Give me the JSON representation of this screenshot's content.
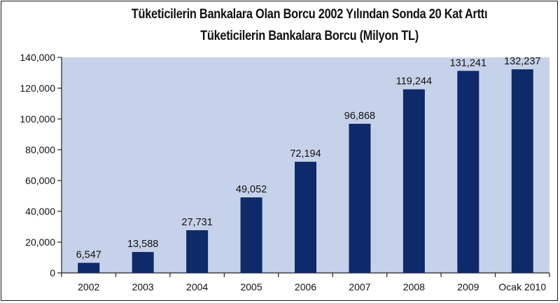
{
  "chart_data": {
    "type": "bar",
    "title": "Tüketicilerin Bankalara Olan Borcu 2002 Yılından Sonda 20 Kat Arttı",
    "subtitle": "Tüketicilerin Bankalara Borcu (Milyon TL)",
    "xlabel": "",
    "ylabel": "",
    "categories": [
      "2002",
      "2003",
      "2004",
      "2005",
      "2006",
      "2007",
      "2008",
      "2009",
      "Ocak 2010"
    ],
    "values": [
      6547,
      13588,
      27731,
      49052,
      72194,
      96868,
      119244,
      131241,
      132237
    ],
    "value_labels": [
      "6,547",
      "13,588",
      "27,731",
      "49,052",
      "72,194",
      "96,868",
      "119,244",
      "131,241",
      "132,237"
    ],
    "ylim": [
      0,
      140000
    ],
    "yticks": [
      0,
      20000,
      40000,
      60000,
      80000,
      100000,
      120000,
      140000
    ],
    "ytick_labels": [
      "0",
      "20,000",
      "40,000",
      "60,000",
      "80,000",
      "100,000",
      "120,000",
      "140,000"
    ],
    "grid": false,
    "legend": "none",
    "colors": {
      "bar": "#0f2a6b",
      "plot_background": "#c6d2ea",
      "axis": "#222222"
    }
  }
}
